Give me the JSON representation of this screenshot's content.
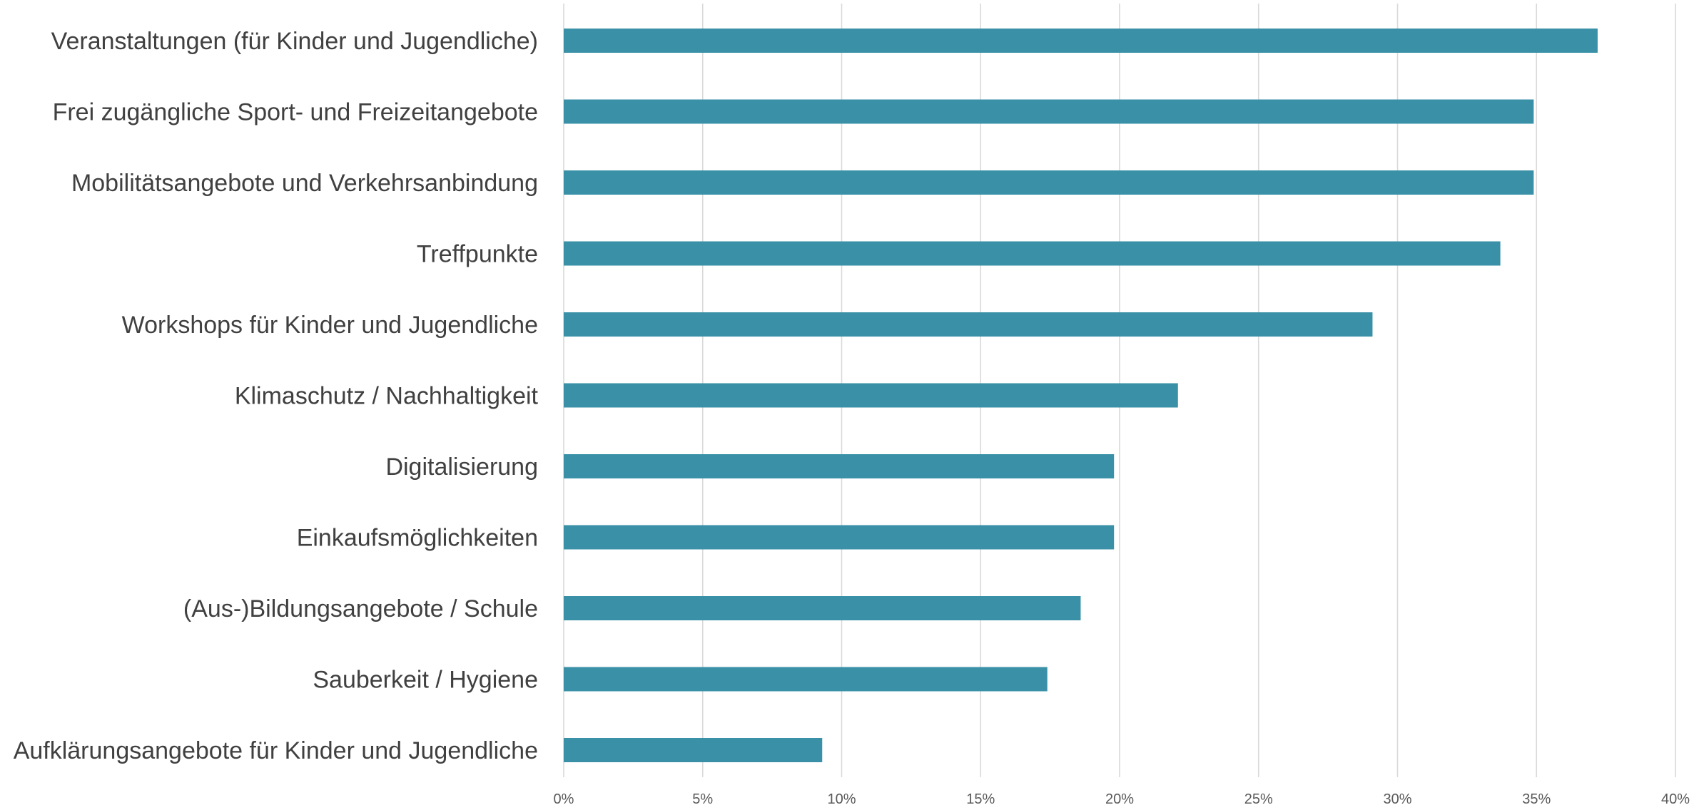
{
  "chart_data": {
    "type": "bar",
    "orientation": "horizontal",
    "categories": [
      "Veranstaltungen (für Kinder und Jugendliche)",
      "Frei zugängliche Sport- und Freizeitangebote",
      "Mobilitätsangebote und Verkehrsanbindung",
      "Treffpunkte",
      "Workshops für Kinder und Jugendliche",
      "Klimaschutz / Nachhaltigkeit",
      "Digitalisierung",
      "Einkaufsmöglichkeiten",
      "(Aus-)Bildungsangebote / Schule",
      "Sauberkeit / Hygiene",
      "Aufklärungsangebote für Kinder und Jugendliche"
    ],
    "values": [
      37.2,
      34.9,
      34.9,
      33.7,
      29.1,
      22.1,
      19.8,
      19.8,
      18.6,
      17.4,
      9.3
    ],
    "xlim": [
      0,
      40
    ],
    "xticks": [
      0,
      5,
      10,
      15,
      20,
      25,
      30,
      35,
      40
    ],
    "tick_labels": [
      "0%",
      "5%",
      "10%",
      "15%",
      "20%",
      "25%",
      "30%",
      "35%",
      "40%"
    ],
    "bar_color": "#3a91a7",
    "grid": true,
    "legend": "none"
  }
}
